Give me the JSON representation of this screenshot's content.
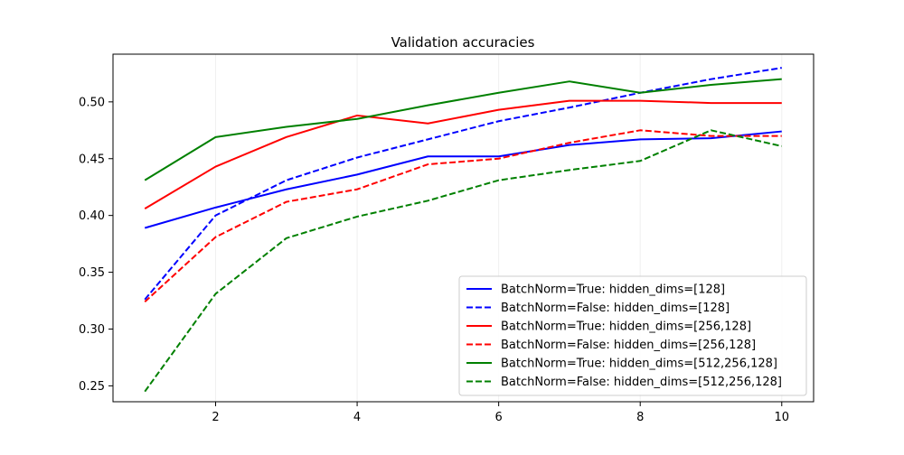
{
  "chart_data": {
    "type": "line",
    "title": "Validation accuracies",
    "xlabel": "",
    "ylabel": "",
    "xlim": [
      0.55,
      10.45
    ],
    "ylim": [
      0.236,
      0.542
    ],
    "xticks": [
      2,
      4,
      6,
      8,
      10
    ],
    "yticks": [
      0.25,
      0.3,
      0.35,
      0.4,
      0.45,
      0.5
    ],
    "ytick_labels": [
      "0.25",
      "0.30",
      "0.35",
      "0.40",
      "0.45",
      "0.50"
    ],
    "grid": false,
    "legend_position": "lower-right",
    "x": [
      1,
      2,
      3,
      4,
      5,
      6,
      7,
      8,
      9,
      10
    ],
    "series": [
      {
        "name": "BatchNorm=True: hidden_dims=[128]",
        "color": "#0000ff",
        "style": "solid",
        "values": [
          0.389,
          0.407,
          0.423,
          0.436,
          0.452,
          0.452,
          0.462,
          0.467,
          0.468,
          0.474
        ]
      },
      {
        "name": "BatchNorm=False: hidden_dims=[128]",
        "color": "#0000ff",
        "style": "dashed",
        "values": [
          0.326,
          0.4,
          0.431,
          0.451,
          0.467,
          0.483,
          0.495,
          0.508,
          0.52,
          0.53
        ]
      },
      {
        "name": "BatchNorm=True: hidden_dims=[256,128]",
        "color": "#ff0000",
        "style": "solid",
        "values": [
          0.406,
          0.443,
          0.469,
          0.488,
          0.481,
          0.493,
          0.501,
          0.501,
          0.499,
          0.499
        ]
      },
      {
        "name": "BatchNorm=False: hidden_dims=[256,128]",
        "color": "#ff0000",
        "style": "dashed",
        "values": [
          0.324,
          0.381,
          0.412,
          0.423,
          0.445,
          0.45,
          0.464,
          0.475,
          0.47,
          0.47
        ]
      },
      {
        "name": "BatchNorm=True: hidden_dims=[512,256,128]",
        "color": "#008000",
        "style": "solid",
        "values": [
          0.431,
          0.469,
          0.478,
          0.485,
          0.497,
          0.508,
          0.518,
          0.508,
          0.515,
          0.52
        ]
      },
      {
        "name": "BatchNorm=False: hidden_dims=[512,256,128]",
        "color": "#008000",
        "style": "dashed",
        "values": [
          0.245,
          0.331,
          0.38,
          0.399,
          0.413,
          0.431,
          0.44,
          0.448,
          0.475,
          0.461
        ]
      }
    ]
  }
}
